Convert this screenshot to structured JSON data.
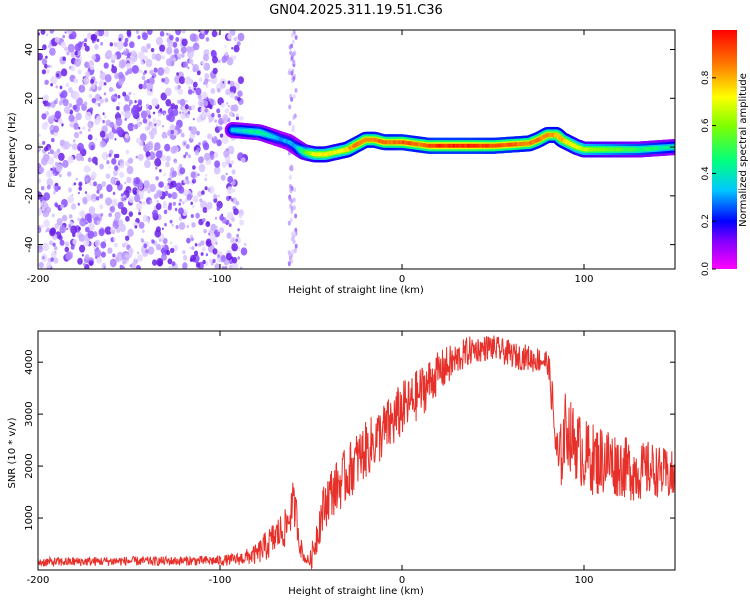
{
  "title": "GN04.2025.311.19.51.C36",
  "chart_data": [
    {
      "type": "heatmap",
      "title": "GN04.2025.311.19.51.C36",
      "xlabel": "Height of straight line (km)",
      "ylabel": "Frequency (Hz)",
      "xlim": [
        -200,
        150
      ],
      "ylim": [
        -50,
        48
      ],
      "x_ticks": [
        -200,
        -100,
        0,
        100
      ],
      "x_tick_labels": [
        "-200",
        "-100",
        "0",
        "100"
      ],
      "y_ticks": [
        -40,
        -20,
        0,
        20,
        40
      ],
      "y_tick_labels": [
        "-40",
        "-20",
        "0",
        "20",
        "40"
      ],
      "noise_region_x": [
        -200,
        -88
      ],
      "noise_stripe_x": [
        -62,
        -58
      ],
      "signal_track": {
        "x": [
          -93,
          -85,
          -78,
          -74,
          -70,
          -66,
          -62,
          -58,
          -54,
          -48,
          -42,
          -36,
          -30,
          -25,
          -20,
          -15,
          -10,
          -5,
          0,
          5,
          10,
          15,
          20,
          30,
          40,
          50,
          60,
          70,
          75,
          80,
          85,
          88,
          92,
          96,
          100,
          110,
          120,
          130,
          140,
          150
        ],
        "freq": [
          7,
          6.5,
          6,
          5,
          4,
          3,
          2,
          0,
          -2,
          -3,
          -3,
          -2,
          -1,
          1,
          3,
          3,
          2,
          2,
          2,
          1.5,
          1,
          0.5,
          0.5,
          0.5,
          0.5,
          0.5,
          1,
          1.5,
          3,
          5,
          5,
          3,
          1.5,
          0,
          -1,
          -1,
          -1,
          -1,
          -0.5,
          0
        ],
        "amplitude": [
          0.35,
          0.4,
          0.45,
          0.4,
          0.35,
          0.3,
          0.3,
          0.3,
          0.5,
          0.7,
          0.75,
          0.7,
          0.75,
          0.85,
          0.85,
          0.85,
          0.9,
          0.85,
          0.9,
          0.9,
          0.85,
          0.9,
          0.95,
          0.95,
          0.95,
          0.9,
          0.9,
          0.85,
          0.85,
          0.85,
          0.8,
          0.8,
          0.75,
          0.7,
          0.65,
          0.6,
          0.55,
          0.5,
          0.45,
          0.4
        ]
      }
    },
    {
      "type": "line",
      "xlabel": "Height of straight line (km)",
      "ylabel": "SNR (10 * v/v)",
      "xlim": [
        -200,
        150
      ],
      "ylim": [
        0,
        4600
      ],
      "x_ticks": [
        -200,
        -100,
        0,
        100
      ],
      "x_tick_labels": [
        "-200",
        "-100",
        "0",
        "100"
      ],
      "y_ticks": [
        1000,
        2000,
        3000,
        4000
      ],
      "y_tick_labels": [
        "1000",
        "2000",
        "3000",
        "4000"
      ],
      "series": [
        {
          "name": "SNR",
          "color": "#e8302a",
          "x": [
            -200,
            -180,
            -160,
            -140,
            -120,
            -100,
            -90,
            -80,
            -76,
            -72,
            -68,
            -64,
            -62,
            -60,
            -58,
            -56,
            -54,
            -52,
            -50,
            -48,
            -46,
            -44,
            -40,
            -36,
            -32,
            -28,
            -24,
            -20,
            -16,
            -12,
            -8,
            -4,
            0,
            4,
            8,
            12,
            16,
            20,
            24,
            28,
            32,
            36,
            40,
            44,
            48,
            52,
            56,
            60,
            64,
            68,
            72,
            76,
            80,
            82,
            84,
            86,
            88,
            90,
            92,
            96,
            100,
            104,
            108,
            112,
            116,
            120,
            124,
            128,
            132,
            136,
            140,
            144,
            148,
            150
          ],
          "y": [
            150,
            160,
            170,
            170,
            175,
            180,
            210,
            300,
            420,
            550,
            700,
            800,
            1000,
            1300,
            1050,
            500,
            250,
            180,
            200,
            500,
            800,
            1100,
            1450,
            1600,
            1750,
            1950,
            2150,
            2300,
            2450,
            2600,
            2750,
            2900,
            3100,
            3200,
            3350,
            3500,
            3650,
            3800,
            3900,
            4000,
            4100,
            4200,
            4250,
            4250,
            4300,
            4250,
            4200,
            4150,
            4100,
            4100,
            4050,
            4050,
            4000,
            3500,
            2600,
            2000,
            2300,
            2800,
            2600,
            2400,
            2200,
            2150,
            2100,
            2150,
            2050,
            2000,
            1950,
            1900,
            1900,
            1950,
            1900,
            1850,
            1800,
            1750
          ],
          "noise_amplitude": [
            90,
            90,
            90,
            90,
            90,
            100,
            120,
            200,
            280,
            320,
            350,
            380,
            400,
            400,
            380,
            250,
            100,
            100,
            200,
            350,
            400,
            450,
            500,
            500,
            550,
            550,
            550,
            550,
            550,
            550,
            550,
            550,
            550,
            500,
            500,
            500,
            450,
            400,
            400,
            350,
            300,
            300,
            250,
            250,
            250,
            250,
            250,
            250,
            250,
            250,
            250,
            250,
            250,
            400,
            500,
            600,
            700,
            700,
            700,
            700,
            700,
            700,
            700,
            700,
            650,
            600,
            600,
            600,
            550,
            550,
            500,
            500,
            500,
            500
          ]
        }
      ]
    },
    {
      "type": "colorbar",
      "label": "Normalized spectral amplitude",
      "range": [
        0,
        1
      ],
      "ticks": [
        0.0,
        0.2,
        0.4,
        0.6,
        0.8
      ],
      "tick_labels": [
        "0.0",
        "0.2",
        "0.4",
        "0.6",
        "0.8"
      ]
    }
  ]
}
